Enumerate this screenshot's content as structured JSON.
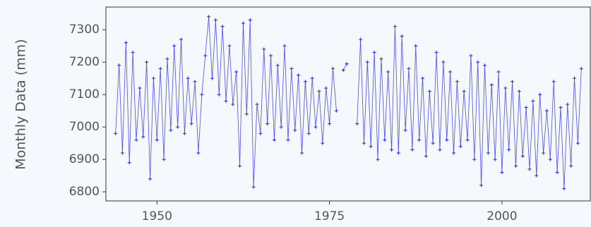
{
  "chart_data": {
    "type": "line",
    "y_label": "Monthly Data (mm)",
    "x": [
      1944.0,
      1944.5,
      1945.0,
      1945.5,
      1946.0,
      1946.5,
      1947.0,
      1947.5,
      1948.0,
      1948.5,
      1949.0,
      1949.5,
      1950.0,
      1950.5,
      1951.0,
      1951.5,
      1952.0,
      1952.5,
      1953.0,
      1953.5,
      1954.0,
      1954.5,
      1955.0,
      1955.5,
      1956.0,
      1956.5,
      1957.0,
      1957.5,
      1958.0,
      1958.5,
      1959.0,
      1959.5,
      1960.0,
      1960.5,
      1961.0,
      1961.5,
      1962.0,
      1962.5,
      1963.0,
      1963.5,
      1964.0,
      1964.5,
      1965.0,
      1965.5,
      1966.0,
      1966.5,
      1967.0,
      1967.5,
      1968.0,
      1968.5,
      1969.0,
      1969.5,
      1970.0,
      1970.5,
      1971.0,
      1971.5,
      1972.0,
      1972.5,
      1973.0,
      1973.5,
      1974.0,
      1974.5,
      1975.0,
      1975.5,
      1976.0,
      1976.5,
      1977.0,
      1977.5,
      1978.0,
      1978.5,
      1979.0,
      1979.5,
      1980.0,
      1980.5,
      1981.0,
      1981.5,
      1982.0,
      1982.5,
      1983.0,
      1983.5,
      1984.0,
      1984.5,
      1985.0,
      1985.5,
      1986.0,
      1986.5,
      1987.0,
      1987.5,
      1988.0,
      1988.5,
      1989.0,
      1989.5,
      1990.0,
      1990.5,
      1991.0,
      1991.5,
      1992.0,
      1992.5,
      1993.0,
      1993.5,
      1994.0,
      1994.5,
      1995.0,
      1995.5,
      1996.0,
      1996.5,
      1997.0,
      1997.5,
      1998.0,
      1998.5,
      1999.0,
      1999.5,
      2000.0,
      2000.5,
      2001.0,
      2001.5,
      2002.0,
      2002.5,
      2003.0,
      2003.5,
      2004.0,
      2004.5,
      2005.0,
      2005.5,
      2006.0,
      2006.5,
      2007.0,
      2007.5,
      2008.0,
      2008.5,
      2009.0,
      2009.5,
      2010.0,
      2010.5,
      2011.0,
      2011.5
    ],
    "series": [
      {
        "color": "#2222ee",
        "values": [
          6980,
          7190,
          6920,
          7260,
          6890,
          7230,
          6960,
          7120,
          6970,
          7200,
          6840,
          7150,
          6960,
          7180,
          6900,
          7210,
          6990,
          7250,
          7000,
          7270,
          6980,
          7150,
          7010,
          7140,
          6920,
          7100,
          7220,
          7340,
          7150,
          7330,
          7100,
          7310,
          7080,
          7250,
          7070,
          7170,
          6880,
          7320,
          7040,
          7330,
          6815,
          7070,
          6980,
          7240,
          7010,
          7220,
          6960,
          7190,
          7000,
          7250,
          6960,
          7180,
          6990,
          7160,
          6920,
          7140,
          6980,
          7150,
          7000,
          7110,
          6950,
          7120,
          7010,
          7180,
          7050,
          null,
          7175,
          7195,
          null,
          null,
          7010,
          7270,
          6950,
          7200,
          6940,
          7230,
          6900,
          7210,
          6960,
          7170,
          6930,
          7310,
          6920,
          7280,
          6990,
          7180,
          6930,
          7250,
          6960,
          7150,
          6910,
          7110,
          6950,
          7230,
          6930,
          7200,
          6960,
          7170,
          6920,
          7140,
          6940,
          7110,
          6960,
          7220,
          6900,
          7200,
          6820,
          7190,
          6920,
          7130,
          6900,
          7170,
          6860,
          7120,
          6930,
          7140,
          6880,
          7110,
          6910,
          7060,
          6870,
          7080,
          6850,
          7100,
          6920,
          7050,
          6900,
          7140,
          6860,
          7060,
          6810,
          7070,
          6880,
          7150,
          6950,
          7180
        ]
      }
    ],
    "xlim": [
      1942.6,
      2012.8
    ],
    "ylim": [
      6772,
      7370
    ],
    "xticks": [
      1950,
      1975,
      2000
    ],
    "yticks": [
      6800,
      6900,
      7000,
      7100,
      7200,
      7300
    ]
  }
}
